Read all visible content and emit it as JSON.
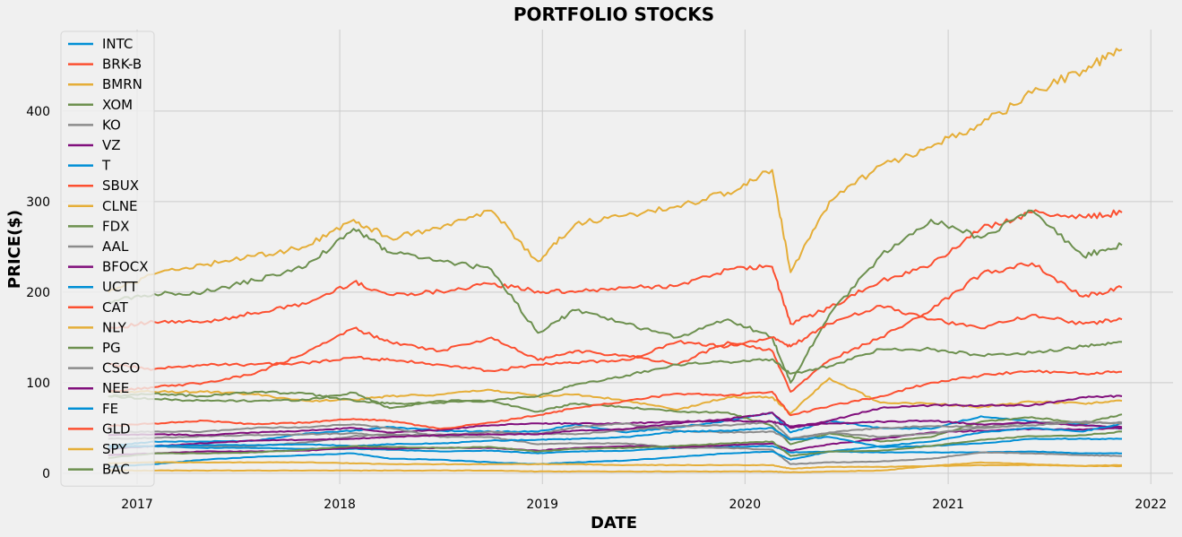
{
  "chart_data": {
    "type": "line",
    "title": "PORTFOLIO STOCKS",
    "xlabel": "DATE",
    "ylabel": "PRICE($)",
    "x_ticks": [
      "2017",
      "2018",
      "2019",
      "2020",
      "2021",
      "2022"
    ],
    "y_ticks": [
      "0",
      "100",
      "200",
      "300",
      "400"
    ],
    "xlim": [
      "2016-08-20",
      "2022-02-10"
    ],
    "ylim": [
      -12,
      490
    ],
    "grid": true,
    "legend_position": "upper-left",
    "x": [
      "2016-11-10",
      "2017-02-01",
      "2017-05-01",
      "2017-08-01",
      "2017-11-01",
      "2018-01-26",
      "2018-04-01",
      "2018-07-01",
      "2018-10-01",
      "2018-12-24",
      "2019-03-01",
      "2019-06-01",
      "2019-09-01",
      "2019-12-01",
      "2020-02-19",
      "2020-03-23",
      "2020-06-01",
      "2020-09-01",
      "2020-12-01",
      "2021-03-01",
      "2021-06-01",
      "2021-09-01",
      "2021-11-10"
    ],
    "series": [
      {
        "name": "INTC",
        "color": "#008fd5",
        "values": [
          30,
          35,
          35,
          36,
          44,
          47,
          51,
          47,
          46,
          46,
          54,
          45,
          51,
          58,
          67,
          45,
          58,
          50,
          49,
          63,
          57,
          54,
          49
        ]
      },
      {
        "name": "BRK-B",
        "color": "#fc4f30",
        "values": [
          160,
          167,
          167,
          177,
          187,
          211,
          197,
          201,
          209,
          201,
          200,
          205,
          207,
          225,
          228,
          165,
          183,
          212,
          230,
          270,
          288,
          283,
          288
        ]
      },
      {
        "name": "BMRN",
        "color": "#e5ae38",
        "values": [
          90,
          90,
          90,
          87,
          80,
          81,
          85,
          87,
          92,
          85,
          87,
          80,
          70,
          84,
          84,
          66,
          105,
          78,
          77,
          73,
          79,
          77,
          80
        ]
      },
      {
        "name": "XOM",
        "color": "#6d904f",
        "values": [
          85,
          82,
          80,
          80,
          81,
          89,
          72,
          80,
          80,
          68,
          77,
          73,
          68,
          67,
          52,
          32,
          44,
          35,
          40,
          57,
          62,
          55,
          65
        ]
      },
      {
        "name": "KO",
        "color": "#8b8b8b",
        "values": [
          38,
          39,
          41,
          42,
          43,
          44,
          41,
          43,
          43,
          44,
          43,
          48,
          52,
          53,
          57,
          38,
          45,
          50,
          52,
          51,
          56,
          56,
          56
        ]
      },
      {
        "name": "VZ",
        "color": "#810f7c",
        "values": [
          42,
          43,
          42,
          45,
          47,
          50,
          45,
          48,
          53,
          55,
          55,
          55,
          57,
          58,
          57,
          52,
          55,
          57,
          58,
          54,
          56,
          53,
          51
        ]
      },
      {
        "name": "T",
        "color": "#008fd5",
        "values": [
          30,
          30,
          28,
          28,
          27,
          27,
          26,
          24,
          25,
          22,
          24,
          25,
          28,
          29,
          30,
          23,
          24,
          23,
          23,
          23,
          24,
          22,
          22
        ]
      },
      {
        "name": "SBUX",
        "color": "#fc4f30",
        "values": [
          52,
          55,
          58,
          54,
          56,
          60,
          58,
          49,
          56,
          64,
          72,
          80,
          88,
          86,
          90,
          64,
          74,
          85,
          100,
          108,
          113,
          110,
          112
        ]
      },
      {
        "name": "CLNE",
        "color": "#e5ae38",
        "values": [
          3,
          3,
          3,
          3,
          3,
          3,
          3,
          3,
          3,
          2,
          2,
          2,
          2,
          2,
          2,
          1,
          2,
          3,
          8,
          12,
          10,
          8,
          9
        ]
      },
      {
        "name": "FDX",
        "color": "#6d904f",
        "values": [
          190,
          198,
          200,
          213,
          228,
          270,
          244,
          235,
          225,
          155,
          180,
          165,
          150,
          170,
          150,
          100,
          175,
          240,
          280,
          260,
          290,
          240,
          252
        ]
      },
      {
        "name": "AAL",
        "color": "#8b8b8b",
        "values": [
          45,
          46,
          46,
          50,
          51,
          54,
          50,
          40,
          40,
          32,
          33,
          33,
          28,
          28,
          26,
          10,
          12,
          13,
          16,
          23,
          22,
          20,
          19
        ]
      },
      {
        "name": "BFOCX",
        "color": "#810f7c",
        "values": [
          20,
          22,
          24,
          24,
          25,
          28,
          27,
          28,
          28,
          25,
          28,
          30,
          29,
          31,
          33,
          25,
          32,
          38,
          45,
          47,
          49,
          48,
          50
        ]
      },
      {
        "name": "UCTT",
        "color": "#008fd5",
        "values": [
          7,
          10,
          15,
          18,
          20,
          22,
          16,
          15,
          12,
          10,
          12,
          14,
          18,
          22,
          24,
          15,
          24,
          30,
          35,
          45,
          50,
          46,
          55
        ]
      },
      {
        "name": "CAT",
        "color": "#fc4f30",
        "values": [
          90,
          95,
          100,
          110,
          133,
          160,
          145,
          135,
          150,
          125,
          135,
          130,
          120,
          145,
          135,
          90,
          125,
          150,
          180,
          220,
          232,
          195,
          205
        ]
      },
      {
        "name": "NLY",
        "color": "#e5ae38",
        "values": [
          11,
          12,
          12,
          12,
          12,
          11,
          10,
          10,
          10,
          10,
          10,
          9,
          9,
          9,
          9,
          5,
          7,
          7,
          8,
          9,
          9,
          8,
          8
        ]
      },
      {
        "name": "PG",
        "color": "#6d904f",
        "values": [
          85,
          88,
          85,
          90,
          88,
          80,
          77,
          78,
          80,
          85,
          98,
          108,
          120,
          123,
          126,
          110,
          118,
          137,
          137,
          130,
          133,
          140,
          145
        ]
      },
      {
        "name": "CSCO",
        "color": "#8b8b8b",
        "values": [
          28,
          30,
          30,
          30,
          34,
          41,
          43,
          41,
          46,
          43,
          51,
          55,
          47,
          45,
          46,
          37,
          45,
          40,
          44,
          50,
          53,
          57,
          55
        ]
      },
      {
        "name": "NEE",
        "color": "#810f7c",
        "values": [
          27,
          30,
          33,
          36,
          37,
          38,
          40,
          42,
          43,
          43,
          47,
          49,
          55,
          60,
          67,
          50,
          58,
          72,
          75,
          75,
          75,
          84,
          85
        ]
      },
      {
        "name": "FE",
        "color": "#008fd5",
        "values": [
          28,
          30,
          31,
          31,
          32,
          30,
          32,
          33,
          36,
          37,
          38,
          40,
          46,
          47,
          50,
          37,
          40,
          29,
          30,
          33,
          38,
          38,
          38
        ]
      },
      {
        "name": "GLD",
        "color": "#fc4f30",
        "values": [
          120,
          115,
          120,
          120,
          122,
          128,
          125,
          120,
          113,
          120,
          122,
          125,
          145,
          140,
          150,
          140,
          165,
          185,
          170,
          160,
          175,
          165,
          170
        ]
      },
      {
        "name": "SPY",
        "color": "#e5ae38",
        "values": [
          200,
          220,
          230,
          240,
          250,
          280,
          260,
          270,
          290,
          234,
          275,
          285,
          295,
          310,
          335,
          222,
          300,
          340,
          360,
          385,
          420,
          445,
          468
        ]
      },
      {
        "name": "BAC",
        "color": "#6d904f",
        "values": [
          17,
          22,
          22,
          23,
          26,
          30,
          29,
          28,
          29,
          24,
          27,
          28,
          30,
          33,
          35,
          19,
          24,
          25,
          30,
          37,
          41,
          42,
          46
        ]
      }
    ]
  }
}
